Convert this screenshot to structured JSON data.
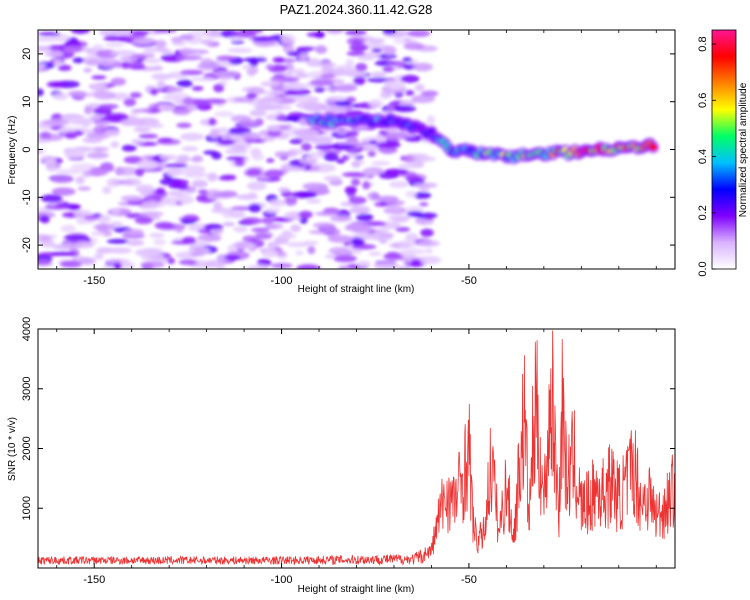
{
  "chart_data": [
    {
      "type": "heatmap",
      "title": "PAZ1.2024.360.11.42.G28",
      "xlabel": "Height of straight line (km)",
      "ylabel": "Frequency (Hz)",
      "xlim": [
        -165,
        5
      ],
      "ylim": [
        -25,
        25
      ],
      "xticks": [
        -150,
        -100,
        -50
      ],
      "yticks": [
        -20,
        -10,
        0,
        10,
        20
      ],
      "colorbar": {
        "label": "Normalized spectral amplitude",
        "range": [
          0,
          0.85
        ],
        "ticks": [
          0.0,
          0.2,
          0.4,
          0.6,
          0.8
        ],
        "colors": [
          "#ffffff",
          "#d9b3ff",
          "#7f00ff",
          "#0000ff",
          "#00bfff",
          "#00ff66",
          "#ffff00",
          "#ff8000",
          "#ff0000",
          "#ff1493"
        ]
      },
      "signal_track": [
        {
          "x": -92,
          "y": 6.2,
          "amp": 0.45
        },
        {
          "x": -88,
          "y": 6.0,
          "amp": 0.4
        },
        {
          "x": -70,
          "y": 6.0,
          "amp": 0.35
        },
        {
          "x": -60,
          "y": 3.5,
          "amp": 0.3
        },
        {
          "x": -55,
          "y": 0.0,
          "amp": 0.45
        },
        {
          "x": -45,
          "y": -1.0,
          "amp": 0.5
        },
        {
          "x": -38,
          "y": -1.5,
          "amp": 0.55
        },
        {
          "x": -30,
          "y": -0.8,
          "amp": 0.6
        },
        {
          "x": -20,
          "y": -0.5,
          "amp": 0.8
        },
        {
          "x": -10,
          "y": 0.5,
          "amp": 0.75
        },
        {
          "x": 0,
          "y": 0.8,
          "amp": 0.7
        }
      ]
    },
    {
      "type": "line",
      "xlabel": "Height of straight line (km)",
      "ylabel": "SNR (10 * v/v)",
      "xlim": [
        -165,
        5
      ],
      "ylim": [
        0,
        4000
      ],
      "xticks": [
        -150,
        -100,
        -50
      ],
      "yticks": [
        1000,
        2000,
        3000,
        4000
      ],
      "color": "#ee3333",
      "series": [
        {
          "x": [
            -165,
            -100,
            -65,
            -60,
            -58,
            -56,
            -54,
            -52,
            -51,
            -50,
            -49,
            -48,
            -46,
            -44,
            -42,
            -40,
            -38,
            -36,
            -35,
            -34,
            -33,
            -32,
            -30,
            -28,
            -26,
            -25,
            -24,
            -22,
            -20,
            -18,
            -16,
            -14,
            -12,
            -10,
            -8,
            -6,
            -4,
            -2,
            0,
            2,
            5
          ],
          "values": [
            150,
            150,
            200,
            400,
            1200,
            1700,
            1500,
            2000,
            2300,
            2750,
            1200,
            600,
            800,
            2500,
            800,
            1900,
            700,
            2900,
            3500,
            1000,
            2800,
            3700,
            1500,
            4100,
            1300,
            4000,
            2000,
            2500,
            1400,
            1500,
            1800,
            1700,
            2000,
            1600,
            1900,
            2400,
            1500,
            1700,
            1200,
            1350,
            1900
          ]
        }
      ]
    }
  ]
}
